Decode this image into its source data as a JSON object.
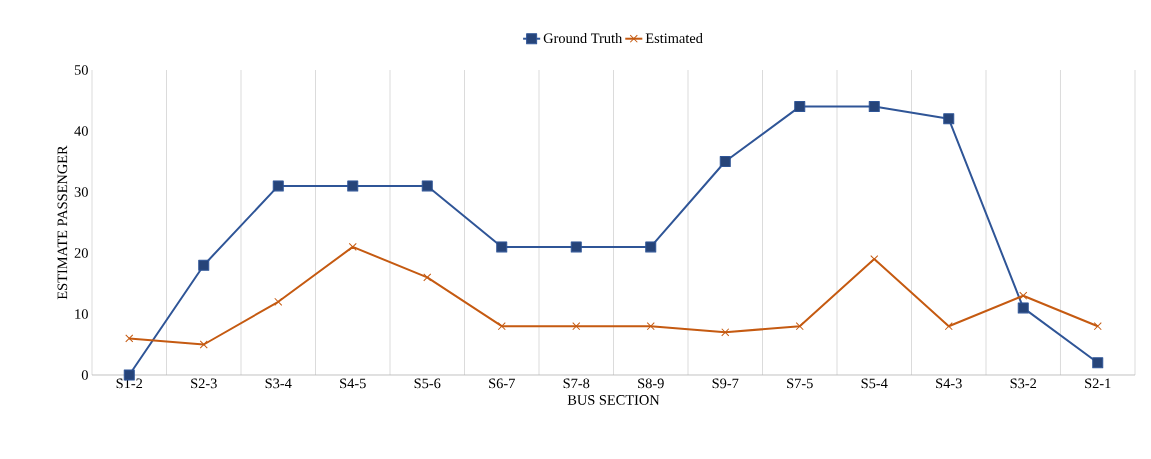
{
  "chart_data": {
    "type": "line",
    "xlabel": "BUS SECTION",
    "ylabel": "ESTIMATE PASSENGER",
    "categories": [
      "S1-2",
      "S2-3",
      "S3-4",
      "S4-5",
      "S5-6",
      "S6-7",
      "S7-8",
      "S8-9",
      "S9-7",
      "S7-5",
      "S5-4",
      "S4-3",
      "S3-2",
      "S2-1"
    ],
    "series": [
      {
        "name": "Ground Truth",
        "color": "#2f5597",
        "marker": "square",
        "values": [
          0,
          18,
          31,
          31,
          31,
          21,
          21,
          21,
          35,
          44,
          44,
          42,
          11,
          2
        ]
      },
      {
        "name": "Estimated",
        "color": "#c55a11",
        "marker": "cross",
        "values": [
          6,
          5,
          12,
          21,
          16,
          8,
          8,
          8,
          7,
          8,
          19,
          8,
          13,
          8
        ]
      }
    ],
    "ylim": [
      0,
      50
    ],
    "yticks": [
      0,
      10,
      20,
      30,
      40,
      50
    ],
    "grid": "x",
    "legend": "top",
    "line_style": "solid"
  }
}
